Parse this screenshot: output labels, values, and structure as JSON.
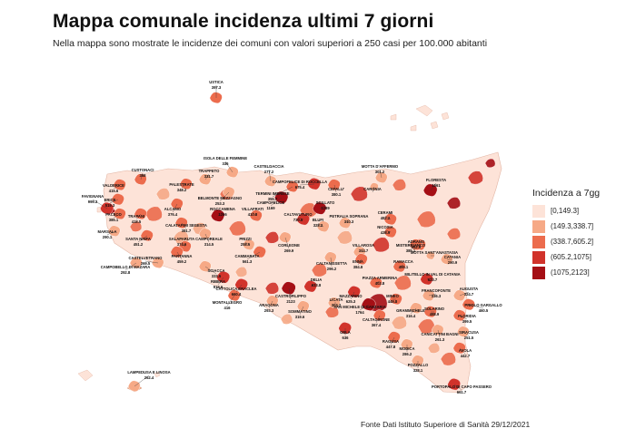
{
  "title": "Mappa comunale incidenza ultimi 7 giorni",
  "subtitle": "Nella mappa sono mostrate le incidenze dei comuni con valori superiori a 250 casi per 100.000 abitanti",
  "source": "Fonte Dati Istituto Superiore di Sanità 29/12/2021",
  "legend": {
    "title": "Incidenza a 7gg",
    "classes": [
      {
        "label": "[0,149.3]",
        "color": "#fde3d8"
      },
      {
        "label": "(149.3,338.7]",
        "color": "#f6a986"
      },
      {
        "label": "(338.7,605.2]",
        "color": "#ec6c4d"
      },
      {
        "label": "(605.2,1075]",
        "color": "#d1332b"
      },
      {
        "label": "(1075,2123]",
        "color": "#a50f15"
      }
    ]
  },
  "municipalities": [
    {
      "name": "USTICA",
      "value": "397.3"
    },
    {
      "name": "ISOLA DELLE FEMMINE",
      "value": "336"
    },
    {
      "name": "CUSTONACI",
      "value": "358"
    },
    {
      "name": "TRAPPETO",
      "value": "331.7"
    },
    {
      "name": "CASTELDACCIA",
      "value": "277.2"
    },
    {
      "name": "MOTTA D'AFFERMO",
      "value": "301.2"
    },
    {
      "name": "VALDERICE",
      "value": "415.6"
    },
    {
      "name": "PALESTRATE",
      "value": "348.2"
    },
    {
      "name": "TERMINI IMERESE",
      "value": "355.7"
    },
    {
      "name": "CAMPOFELICE DI ROCCELLA",
      "value": "675.4"
    },
    {
      "name": "CEFALU'",
      "value": "380.1"
    },
    {
      "name": "CARONIA",
      "value": ""
    },
    {
      "name": "FLORESTA",
      "value": "1561"
    },
    {
      "name": "FAVIGNANA",
      "value": "999.3"
    },
    {
      "name": "ERICE",
      "value": "519.3"
    },
    {
      "name": "BELMONTE MEZZAGNO",
      "value": "253.3"
    },
    {
      "name": "ALCAMO",
      "value": "376.4"
    },
    {
      "name": "ROCCAMENA",
      "value": "1266"
    },
    {
      "name": "VILLAFRATI",
      "value": "410.8"
    },
    {
      "name": "CAMPOFELICE",
      "value": "1169"
    },
    {
      "name": "SCILLATO",
      "value": "1289"
    },
    {
      "name": "PETRALIA SOPRANA",
      "value": "310.3"
    },
    {
      "name": "CERAMI",
      "value": "482.2"
    },
    {
      "name": "TRAPANI",
      "value": "418.5"
    },
    {
      "name": "PACECO",
      "value": "385.1"
    },
    {
      "name": "CALATAFIMI SEGESTA",
      "value": "381.7"
    },
    {
      "name": "CALTAVUTURO",
      "value": "730.5"
    },
    {
      "name": "BLUFI",
      "value": "328.2"
    },
    {
      "name": "NICOSIA",
      "value": "438.9"
    },
    {
      "name": "ADRANO",
      "value": "452.8"
    },
    {
      "name": "MARSALA",
      "value": "290.1"
    },
    {
      "name": "SANTA NINFA",
      "value": "451.2"
    },
    {
      "name": "SALAPARUTA",
      "value": "374.6"
    },
    {
      "name": "CAMPOREALE",
      "value": "314.5"
    },
    {
      "name": "PRIZZI",
      "value": "258.5"
    },
    {
      "name": "CORLEONE",
      "value": "269.9"
    },
    {
      "name": "CALTANISSETTA",
      "value": "296.2"
    },
    {
      "name": "CATANIA",
      "value": "290.9"
    },
    {
      "name": "PARTANNA",
      "value": "459.2"
    },
    {
      "name": "CAMMARATA",
      "value": "561.3"
    },
    {
      "name": "VILLAROSA",
      "value": "314.7"
    },
    {
      "name": "ENNA",
      "value": "384.8"
    },
    {
      "name": "MISTERBIANCO",
      "value": "385.1"
    },
    {
      "name": "CAMPOBELLO DI MAZARA",
      "value": "292.8"
    },
    {
      "name": "CASTELVETRANO",
      "value": "269.5"
    },
    {
      "name": "SCIACCA",
      "value": "333.5"
    },
    {
      "name": "CASTROFILIPPO",
      "value": "2123"
    },
    {
      "name": "PIAZZA ARMERINA",
      "value": "402.8"
    },
    {
      "name": "MOTTA SANT'ANASTASIA",
      "value": ""
    },
    {
      "name": "RIBERA",
      "value": "919.6"
    },
    {
      "name": "CATTOLICA ERACLEA",
      "value": "660.4"
    },
    {
      "name": "MONTALLEGRO",
      "value": "416"
    },
    {
      "name": "ARAGONA",
      "value": "293.3"
    },
    {
      "name": "DELIA",
      "value": "633.8"
    },
    {
      "name": "MAZZARINO",
      "value": "625.3"
    },
    {
      "name": "GRAMMICHELE",
      "value": "316.4"
    },
    {
      "name": "MINEO",
      "value": "449.8"
    },
    {
      "name": "FRANCOFONTE",
      "value": "336.3"
    },
    {
      "name": "AUGUSTA",
      "value": "324.7"
    },
    {
      "name": "PRIOLO GARGALLO",
      "value": "460.5"
    },
    {
      "name": "SOMMATINO",
      "value": "319.6"
    },
    {
      "name": "SAN MICHELE DI GANZARIA",
      "value": "1764"
    },
    {
      "name": "SOLARINO",
      "value": "488.9"
    },
    {
      "name": "FLORIDIA",
      "value": "399.5"
    },
    {
      "name": "CALTAGIRONE",
      "value": "367.4"
    },
    {
      "name": "GELA",
      "value": "636"
    },
    {
      "name": "CANICATTINI BAGNI",
      "value": "261.3"
    },
    {
      "name": "SIRACUSA",
      "value": "251.5"
    },
    {
      "name": "RAGUSA",
      "value": "447.8"
    },
    {
      "name": "MODICA",
      "value": "286.2"
    },
    {
      "name": "AVOLA",
      "value": "442.7"
    },
    {
      "name": "POZZALLO",
      "value": "328.1"
    },
    {
      "name": "LAMPEDUSA E LINOSA",
      "value": "262.4"
    },
    {
      "name": "PORTOPALO DI CAPO PASSERO",
      "value": "661.7"
    },
    {
      "name": "RAMACCA",
      "value": "495.1"
    },
    {
      "name": "MILITELLO IN VAL DI CATANIA",
      "value": "623.7"
    },
    {
      "name": "LICATA",
      "value": "303.2"
    }
  ]
}
